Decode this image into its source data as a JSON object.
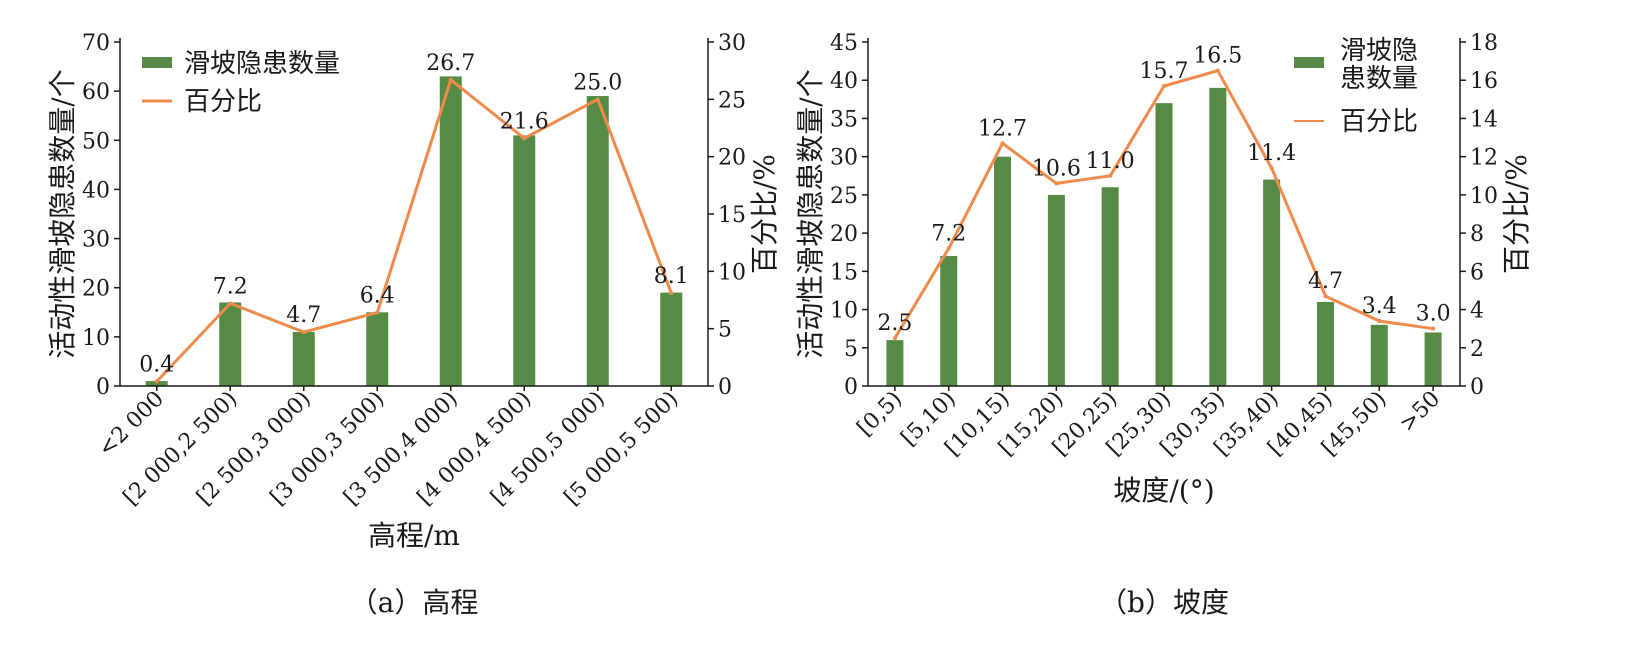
{
  "colors": {
    "bar": "#568b45",
    "line": "#f08a4b",
    "axis": "#1a1a1a"
  },
  "chart_data": [
    {
      "type": "bar",
      "caption": "（a）高程",
      "xlabel": "高程/m",
      "ylabel": "活动性滑坡隐患数量/个",
      "y2label": "百分比/%",
      "ylim": [
        0,
        70
      ],
      "yticks": [
        0,
        10,
        20,
        30,
        40,
        50,
        60,
        70
      ],
      "y2lim": [
        0,
        30
      ],
      "y2ticks": [
        0,
        5,
        10,
        15,
        20,
        25,
        30
      ],
      "legend": {
        "position": "top-left",
        "bar": "滑坡隐患数量",
        "line": "百分比"
      },
      "categories": [
        "<2 000",
        "[2 000,2 500)",
        "[2 500,3 000)",
        "[3 000,3 500)",
        "[3 500,4 000)",
        "[4 000,4 500)",
        "[4 500,5 000)",
        "[5 000,5 500)"
      ],
      "series": [
        {
          "name": "滑坡隐患数量",
          "type": "bar",
          "axis": "left",
          "values": [
            1,
            17,
            11,
            15,
            63,
            51,
            59,
            19
          ]
        },
        {
          "name": "百分比",
          "type": "line",
          "axis": "right",
          "values": [
            0.4,
            7.2,
            4.7,
            6.4,
            26.7,
            21.6,
            25.0,
            8.1
          ]
        }
      ],
      "data_labels": [
        "0.4",
        "7.2",
        "4.7",
        "6.4",
        "26.7",
        "21.6",
        "25.0",
        "8.1"
      ]
    },
    {
      "type": "bar",
      "caption": "（b）坡度",
      "xlabel": "坡度/(°)",
      "ylabel": "活动性滑坡隐患数量/个",
      "y2label": "百分比/%",
      "ylim": [
        0,
        45
      ],
      "yticks": [
        0,
        5,
        10,
        15,
        20,
        25,
        30,
        35,
        40,
        45
      ],
      "y2lim": [
        0,
        18
      ],
      "y2ticks": [
        0,
        2,
        4,
        6,
        8,
        10,
        12,
        14,
        16,
        18
      ],
      "legend": {
        "position": "top-right",
        "bar": [
          "滑坡隐",
          "患数量"
        ],
        "line": "百分比"
      },
      "categories": [
        "[0,5)",
        "[5,10)",
        "[10,15)",
        "[15,20)",
        "[20,25)",
        "[25,30)",
        "[30,35)",
        "[35,40)",
        "[40,45)",
        "[45,50)",
        ">50"
      ],
      "series": [
        {
          "name": "滑坡隐患数量",
          "type": "bar",
          "axis": "left",
          "values": [
            6,
            17,
            30,
            25,
            26,
            37,
            39,
            27,
            11,
            8,
            7
          ]
        },
        {
          "name": "百分比",
          "type": "line",
          "axis": "right",
          "values": [
            2.5,
            7.2,
            12.7,
            10.6,
            11.0,
            15.7,
            16.5,
            11.4,
            4.7,
            3.4,
            3.0
          ]
        }
      ],
      "data_labels": [
        "2.5",
        "7.2",
        "12.7",
        "10.6",
        "11.0",
        "15.7",
        "16.5",
        "11.4",
        "4.7",
        "3.4",
        "3.0"
      ]
    }
  ]
}
